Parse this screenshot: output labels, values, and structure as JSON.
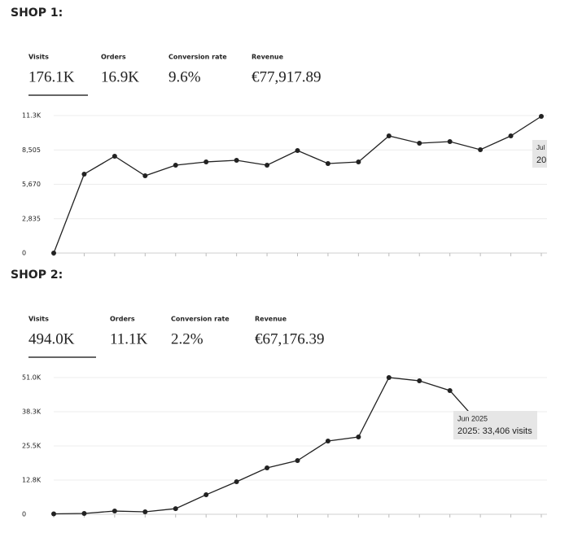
{
  "sections": [
    {
      "heading": "SHOP 1:",
      "metrics": [
        {
          "label": "Visits",
          "value": "176.1K"
        },
        {
          "label": "Orders",
          "value": "16.9K"
        },
        {
          "label": "Conversion rate",
          "value": "9.6%"
        },
        {
          "label": "Revenue",
          "value": "€77,917.89"
        }
      ]
    },
    {
      "heading": "SHOP 2:",
      "metrics": [
        {
          "label": "Visits",
          "value": "494.0K"
        },
        {
          "label": "Orders",
          "value": "11.1K"
        },
        {
          "label": "Conversion rate",
          "value": "2.2%"
        },
        {
          "label": "Revenue",
          "value": "€67,176.39"
        }
      ]
    }
  ],
  "chart_data": [
    {
      "type": "line",
      "color": "#222222",
      "grid": true,
      "categories": [
        null,
        null,
        null,
        null,
        null,
        null,
        null,
        null,
        null,
        null,
        null,
        null,
        null,
        null,
        null,
        null,
        null
      ],
      "values": [
        0,
        6509,
        7985,
        6375,
        7247,
        7515,
        7650,
        7247,
        8455,
        7381,
        7515,
        9662,
        9059,
        9193,
        8522,
        9662,
        11273
      ],
      "ylim": [
        0,
        11340
      ],
      "yticks": [
        0,
        {
          "value": 2835,
          "label": "2,835"
        },
        {
          "value": 5670,
          "label": "5,670"
        },
        {
          "value": 8505,
          "label": "8,505"
        },
        {
          "value": 11340,
          "label": "11.3K"
        }
      ],
      "tooltip": {
        "title": "Jul",
        "text": "20"
      }
    },
    {
      "type": "line",
      "color": "#222222",
      "grid": true,
      "categories": [
        null,
        null,
        null,
        null,
        null,
        null,
        null,
        null,
        null,
        null,
        null,
        null,
        null,
        null,
        null,
        null,
        null
      ],
      "values": [
        150,
        300,
        1200,
        900,
        2100,
        7286,
        12144,
        17305,
        20038,
        27324,
        28842,
        51000,
        49790,
        46147,
        33406,
        null,
        null
      ],
      "ylim": [
        0,
        51000
      ],
      "yticks": [
        0,
        {
          "value": 12750,
          "label": "12.8K"
        },
        {
          "value": 25500,
          "label": "25.5K"
        },
        {
          "value": 38250,
          "label": "38.3K"
        },
        {
          "value": 51000,
          "label": "51.0K"
        }
      ],
      "tooltip": {
        "title": "Jun 2025",
        "text": "2025: 33,406 visits"
      }
    }
  ]
}
